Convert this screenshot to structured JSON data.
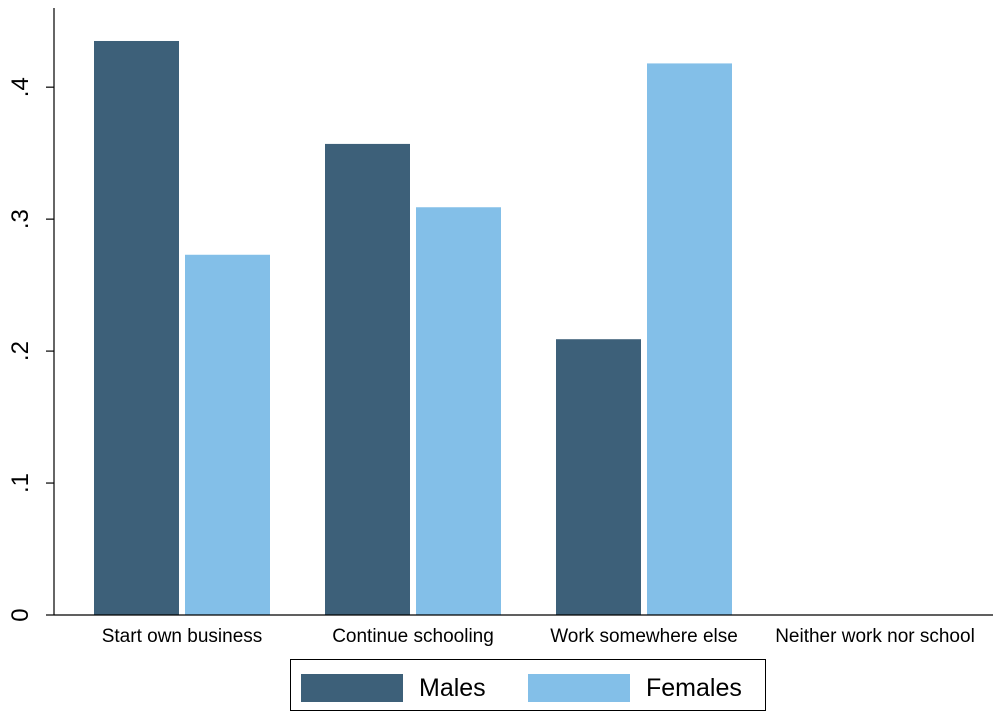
{
  "chart_data": {
    "type": "bar",
    "categories": [
      "Start own business",
      "Continue schooling",
      "Work somewhere else",
      "Neither work nor school"
    ],
    "series": [
      {
        "name": "Males",
        "values": [
          0.435,
          0.357,
          0.209,
          0
        ],
        "color": "#3d6079"
      },
      {
        "name": "Females",
        "values": [
          0.273,
          0.309,
          0.418,
          0
        ],
        "color": "#83bfe8"
      }
    ],
    "xlabel": "",
    "ylabel": "",
    "ylim": [
      0,
      0.46
    ],
    "yticks": [
      {
        "value": 0,
        "label": "0"
      },
      {
        "value": 0.1,
        "label": ".1"
      },
      {
        "value": 0.2,
        "label": ".2"
      },
      {
        "value": 0.3,
        "label": ".3"
      },
      {
        "value": 0.4,
        "label": ".4"
      }
    ],
    "grid": false,
    "legend_position": "bottom"
  },
  "legend": {
    "items": [
      {
        "label": "Males",
        "color": "#3d6079"
      },
      {
        "label": "Females",
        "color": "#83bfe8"
      }
    ]
  }
}
